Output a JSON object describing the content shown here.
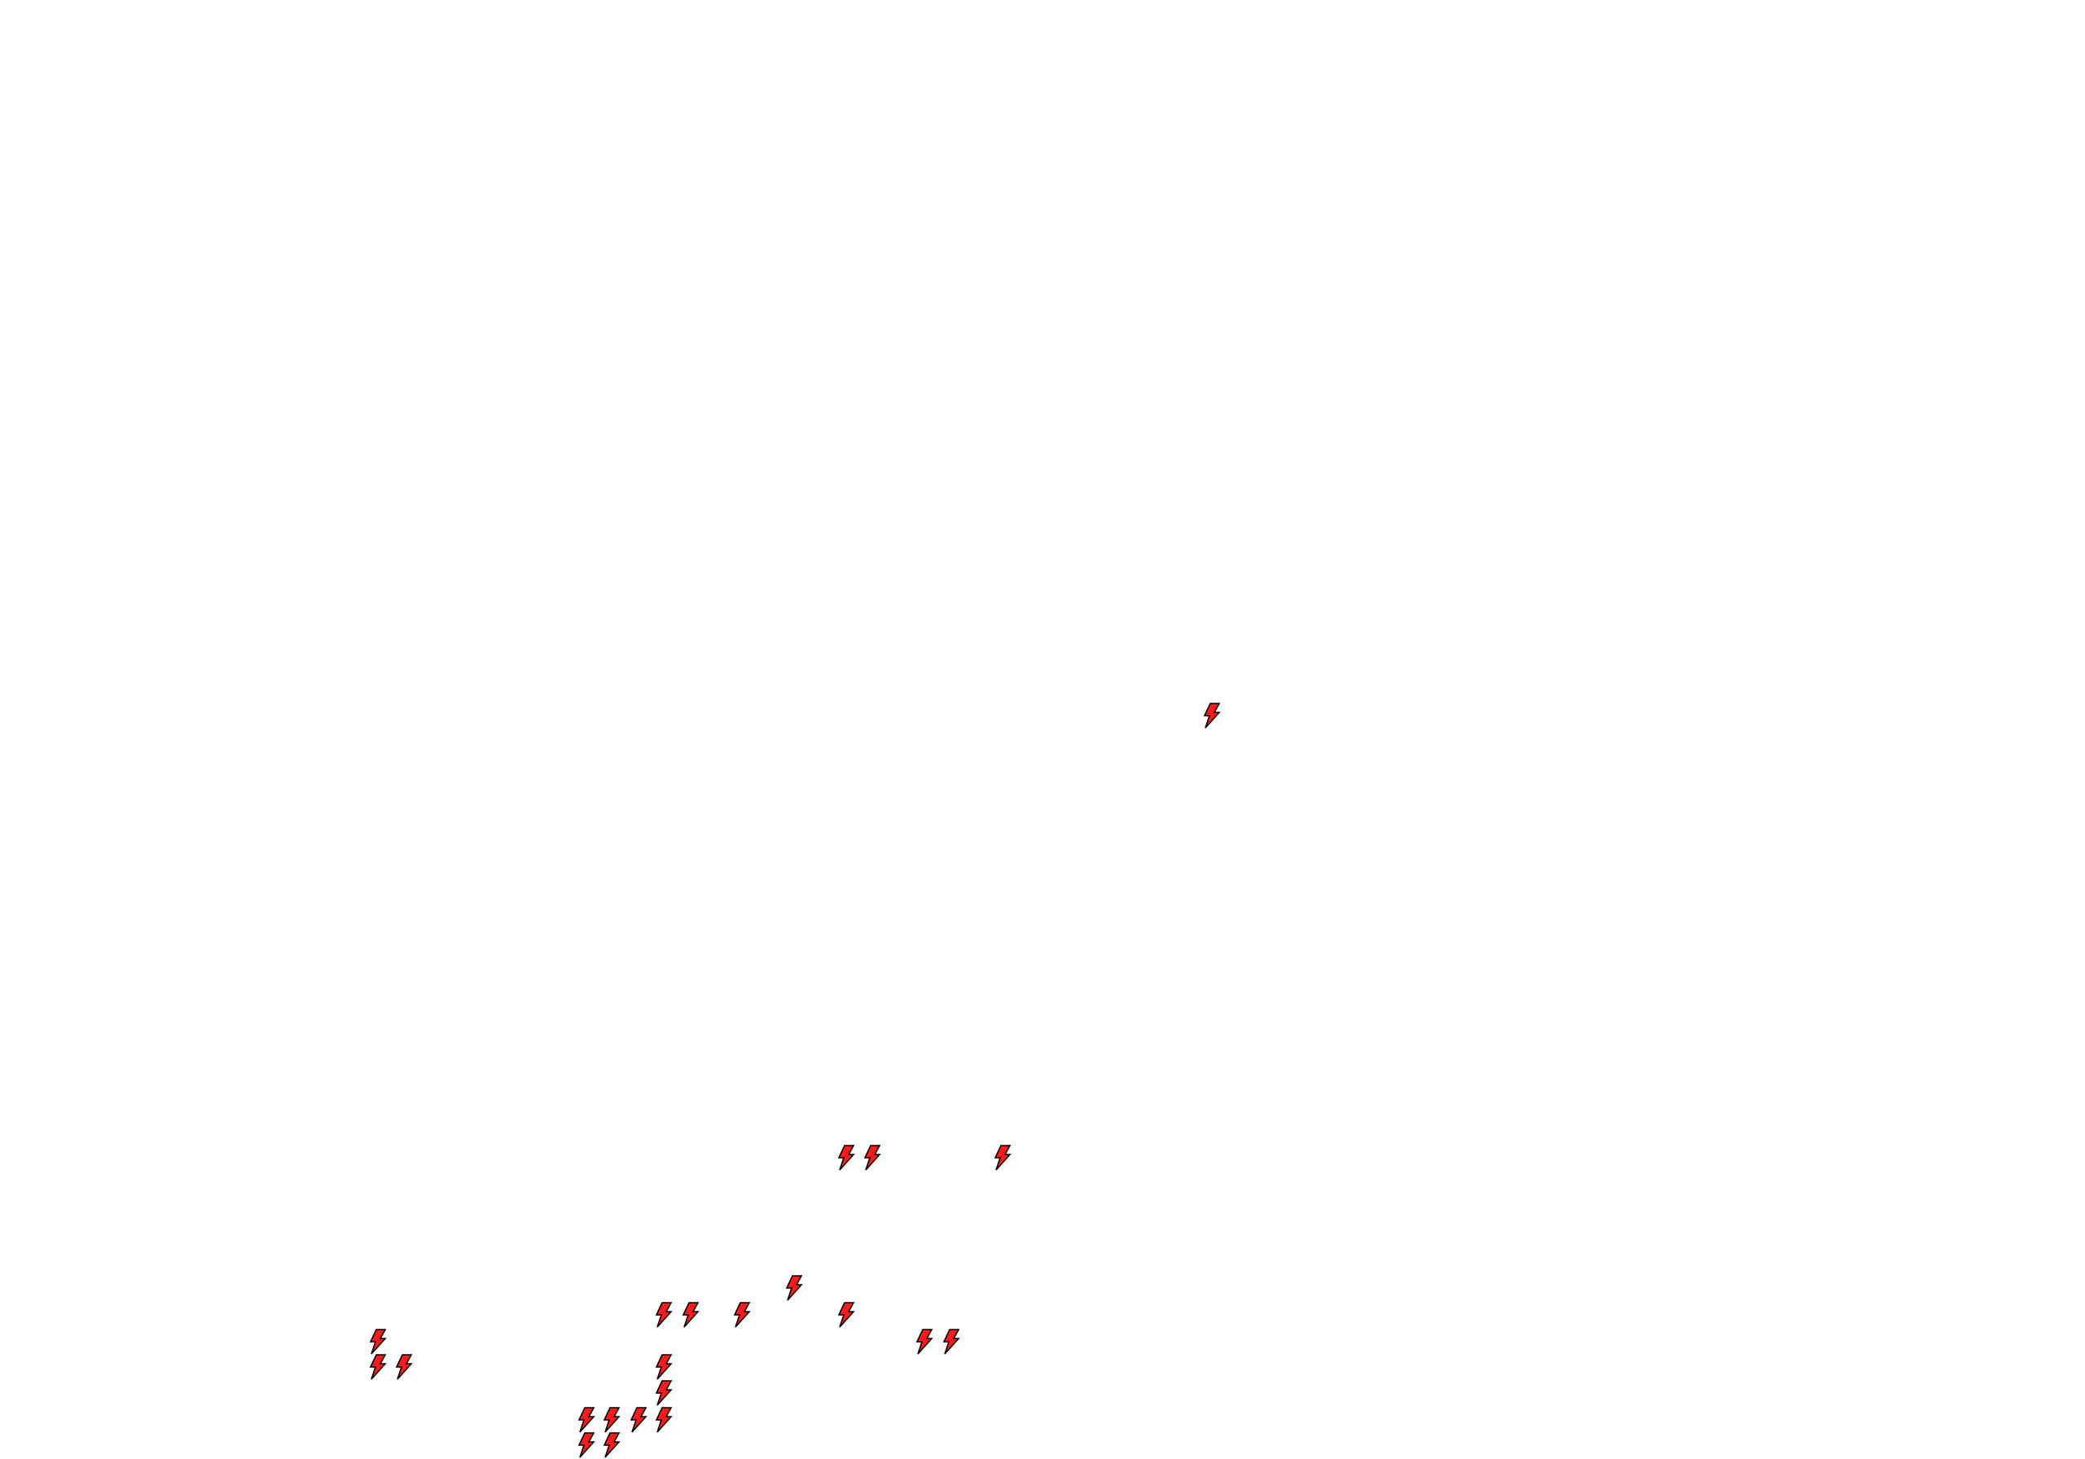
{
  "map": {
    "background_color": "#ffffff",
    "marker_icon": "lightning-bolt-icon",
    "marker_fill": "#ff1a1a",
    "marker_stroke": "#000000"
  }
}
